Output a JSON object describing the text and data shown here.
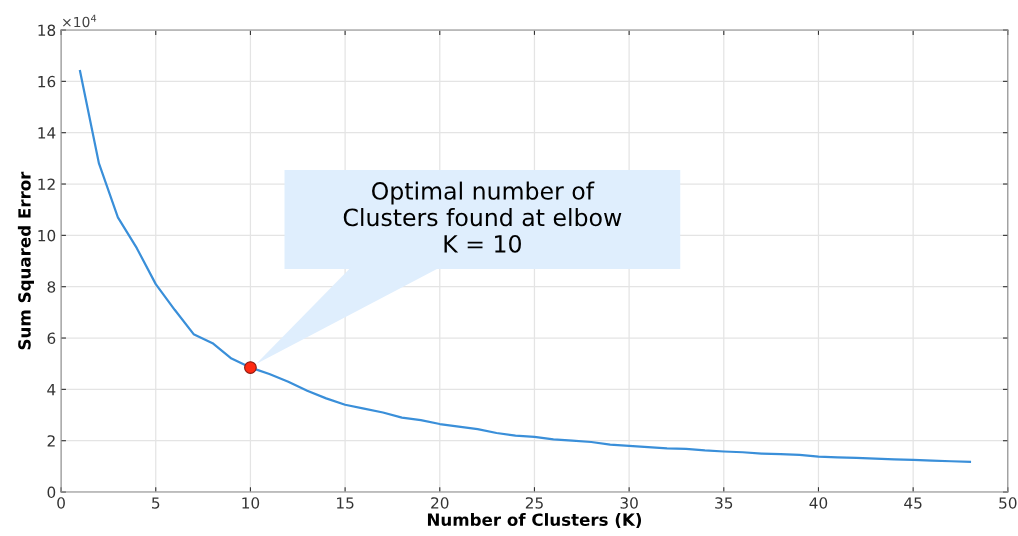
{
  "chart_data": {
    "type": "line",
    "xlabel": "Number of Clusters (K)",
    "ylabel": "Sum Squared Error",
    "x": [
      1,
      2,
      3,
      4,
      5,
      6,
      7,
      8,
      9,
      10,
      11,
      12,
      13,
      14,
      15,
      16,
      17,
      18,
      19,
      20,
      21,
      22,
      23,
      24,
      25,
      26,
      27,
      28,
      29,
      30,
      31,
      32,
      33,
      34,
      35,
      36,
      37,
      38,
      39,
      40,
      41,
      42,
      43,
      44,
      45,
      46,
      47,
      48
    ],
    "series": [
      {
        "color": "#3a8fd9",
        "values": [
          16.4,
          12.8,
          10.7,
          9.5,
          8.1,
          7.1,
          6.15,
          5.8,
          5.2,
          4.85,
          4.6,
          4.3,
          3.95,
          3.65,
          3.4,
          3.25,
          3.1,
          2.9,
          2.8,
          2.65,
          2.55,
          2.45,
          2.3,
          2.2,
          2.15,
          2.05,
          2.0,
          1.95,
          1.85,
          1.8,
          1.75,
          1.7,
          1.68,
          1.62,
          1.58,
          1.55,
          1.5,
          1.48,
          1.45,
          1.38,
          1.35,
          1.33,
          1.3,
          1.27,
          1.25,
          1.22,
          1.2,
          1.18
        ]
      },
      {
        "type": "scatter",
        "color": "#ff2a12",
        "x": [
          10
        ],
        "values": [
          4.85
        ],
        "marker": "circle"
      }
    ],
    "xlim": [
      0,
      50
    ],
    "xticks": [
      0,
      5,
      10,
      15,
      20,
      25,
      30,
      35,
      40,
      45,
      50
    ],
    "ylim": [
      0,
      18
    ],
    "yticks": [
      0,
      2,
      4,
      6,
      8,
      10,
      12,
      14,
      16,
      18
    ],
    "grid": true,
    "marker": "none",
    "annotations": [
      "×10$^{4}$",
      "Optimal number of\nClusters found at elbow\nK = 10"
    ]
  }
}
